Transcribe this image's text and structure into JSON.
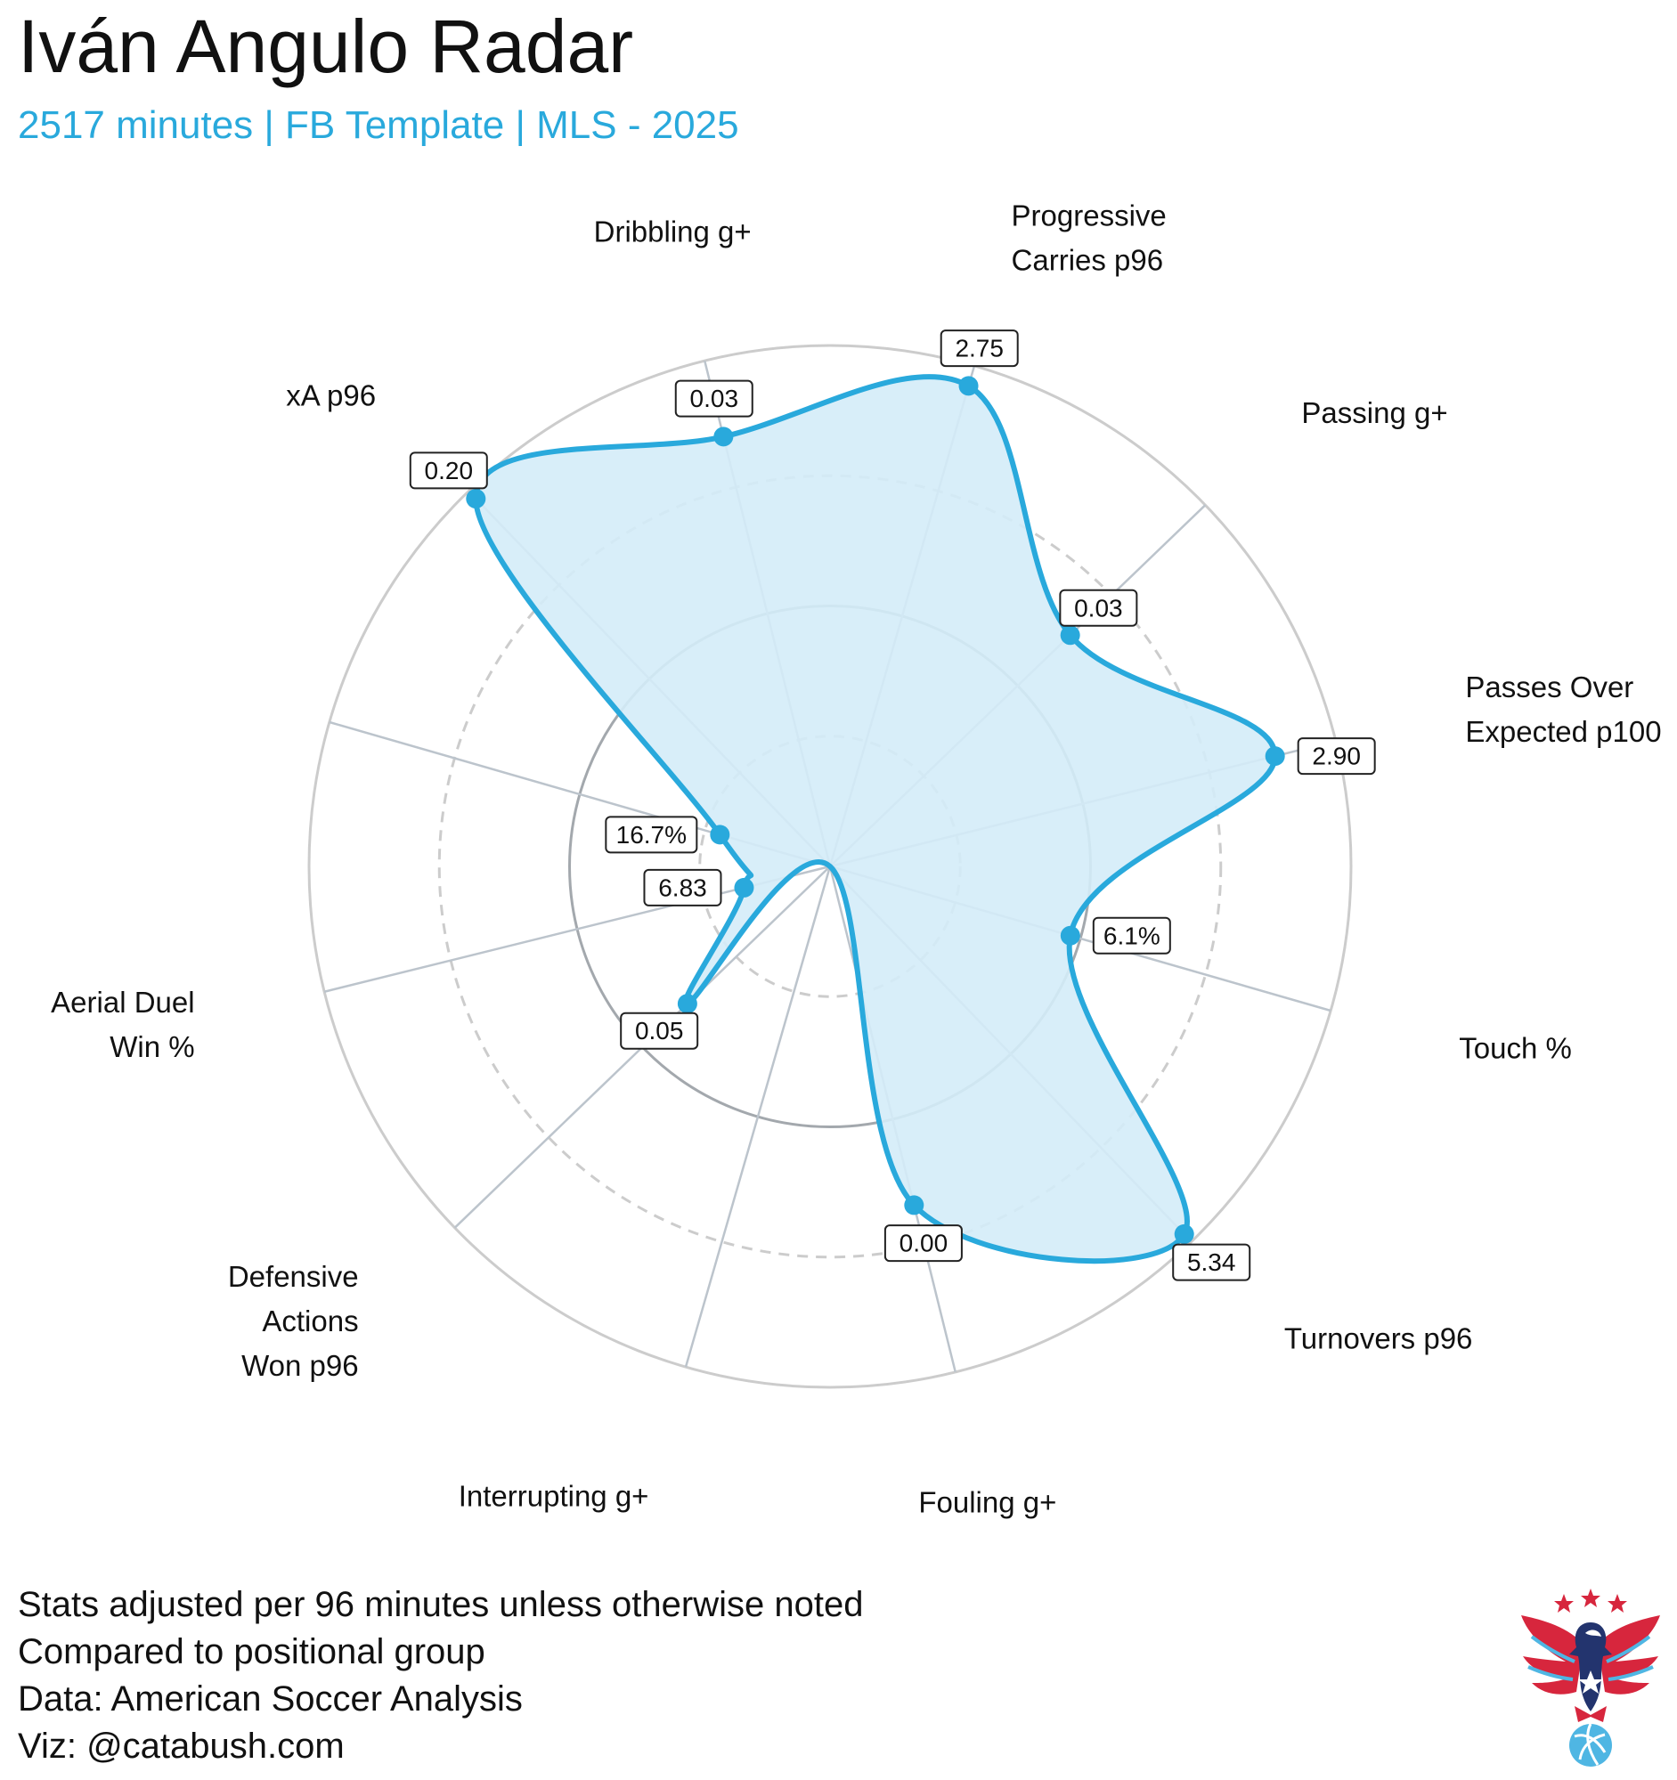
{
  "header": {
    "title": "Iván Angulo Radar",
    "subtitle": "2517 minutes | FB Template | MLS - 2025"
  },
  "footer": {
    "lines": [
      "Stats adjusted per 96 minutes unless otherwise noted",
      "Compared to positional group",
      "Data: American Soccer Analysis",
      "Viz: @catabush.com"
    ]
  },
  "logo": {
    "icon": "eagle-soccer-ball-logo"
  },
  "colors": {
    "accent": "#29a9dc",
    "fill": "#d4ecf8",
    "grid": "#cccccc",
    "spoke": "#bcc4cc",
    "inner_ring": "#a3a8ad",
    "logo_red": "#d7263d",
    "logo_navy": "#23346e"
  },
  "chart_data": {
    "type": "radar",
    "title": "Iván Angulo Radar",
    "percentile_range": [
      0,
      100
    ],
    "grid_rings": [
      25,
      50,
      75,
      100
    ],
    "axes": [
      {
        "label_lines": [
          "Dribbling g+"
        ],
        "value_label": "0.03",
        "percentile": 85
      },
      {
        "label_lines": [
          "Progressive",
          "Carries p96"
        ],
        "value_label": "2.75",
        "percentile": 96
      },
      {
        "label_lines": [
          "Passing g+"
        ],
        "value_label": "0.03",
        "percentile": 64
      },
      {
        "label_lines": [
          "Passes Over",
          "Expected p100"
        ],
        "value_label": "2.90",
        "percentile": 88
      },
      {
        "label_lines": [
          "Touch %"
        ],
        "value_label": "6.1%",
        "percentile": 48
      },
      {
        "label_lines": [
          "Turnovers p96"
        ],
        "value_label": "5.34",
        "percentile": 98
      },
      {
        "label_lines": [
          "Fouling g+"
        ],
        "value_label": "0.00",
        "percentile": 67
      },
      {
        "label_lines": [
          "Interrupting g+"
        ],
        "value_label": "",
        "percentile": 0
      },
      {
        "label_lines": [
          "Defensive",
          "Actions",
          "Won p96"
        ],
        "value_label": "0.05",
        "percentile": 38
      },
      {
        "label_lines": [
          "Aerial Duel",
          "Win %"
        ],
        "value_label": "6.83",
        "percentile": 17
      },
      {
        "label_lines": [
          ""
        ],
        "value_label": "16.7%",
        "percentile": 22
      },
      {
        "label_lines": [
          "xA p96"
        ],
        "value_label": "0.20",
        "percentile": 98
      }
    ]
  }
}
